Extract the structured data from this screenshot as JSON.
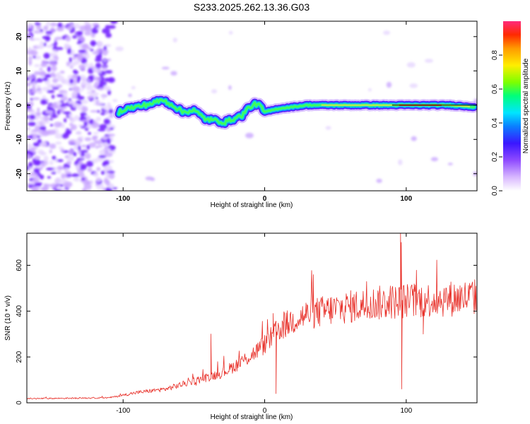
{
  "title": "S233.2025.262.13.36.G03",
  "chart_data": [
    {
      "type": "heatmap",
      "xlabel": "Height of straight line (km)",
      "ylabel": "Frequency (Hz)",
      "xlim": [
        -168,
        150
      ],
      "ylim": [
        -25,
        24.5
      ],
      "xticks": [
        -100,
        0,
        100
      ],
      "yticks": [
        -20,
        -10,
        0,
        10,
        20
      ],
      "ridge": {
        "x": [
          -103,
          -98,
          -90,
          -80,
          -72,
          -65,
          -58,
          -50,
          -42,
          -35,
          -28,
          -22,
          -16,
          -12,
          -8,
          -5,
          0,
          10,
          30,
          60,
          88,
          92,
          110,
          130,
          148
        ],
        "y": [
          -2,
          -1,
          -0.5,
          0.5,
          1.5,
          0,
          -2,
          -1.5,
          -4,
          -4.5,
          -5,
          -4,
          -3,
          -1,
          0,
          0.5,
          -2,
          -1,
          0,
          0,
          0,
          0,
          0,
          0,
          -0.5
        ]
      },
      "colorbar": {
        "label": "Normalized spectral amplitude",
        "ticks": [
          0.0,
          0.2,
          0.4,
          0.6,
          0.8
        ],
        "range": [
          0,
          1
        ]
      }
    },
    {
      "type": "line",
      "xlabel": "Height of straight line (km)",
      "ylabel": "SNR (10 * v/v)",
      "xlim": [
        -168,
        150
      ],
      "ylim": [
        0,
        740
      ],
      "xticks": [
        -100,
        0,
        100
      ],
      "yticks": [
        0,
        200,
        400,
        600
      ],
      "color": "#e8312a",
      "trend": {
        "x": [
          -168,
          -110,
          -90,
          -70,
          -50,
          -30,
          -20,
          -10,
          0,
          5,
          10,
          20,
          30,
          50,
          80,
          100,
          120,
          150
        ],
        "y": [
          18,
          22,
          45,
          60,
          95,
          130,
          165,
          205,
          255,
          285,
          320,
          360,
          385,
          410,
          435,
          445,
          450,
          462
        ]
      },
      "spikes": [
        {
          "x": 8,
          "y": 40
        },
        {
          "x": 6,
          "y": 390
        },
        {
          "x": -38,
          "y": 300
        },
        {
          "x": 96,
          "y": 740
        },
        {
          "x": 96.5,
          "y": 700
        },
        {
          "x": 96.8,
          "y": 60
        },
        {
          "x": 112,
          "y": 300
        }
      ]
    }
  ]
}
